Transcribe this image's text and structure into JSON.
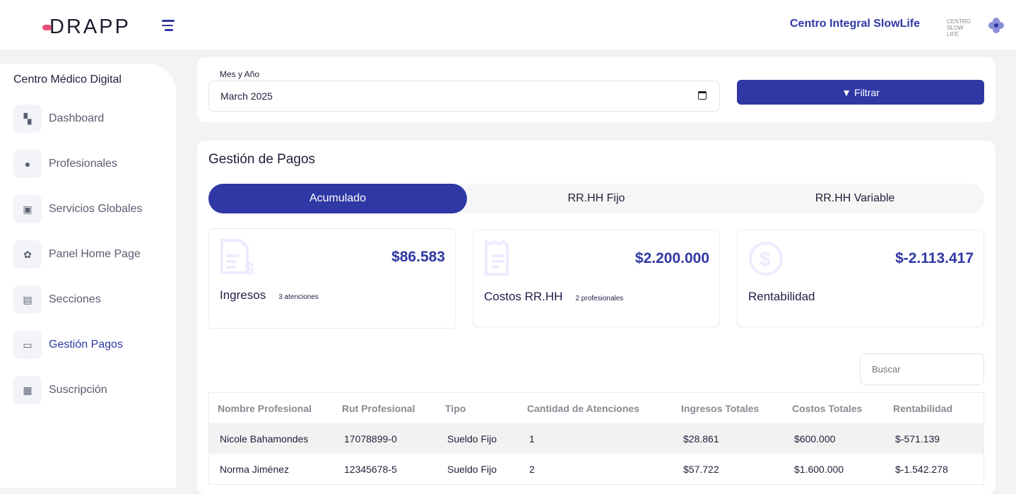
{
  "header": {
    "logo": "DRAPP",
    "center_name": "Centro Integral SlowLife",
    "center_logo_text": "CENTRO SLOW LIFE"
  },
  "sidebar": {
    "title": "Centro Médico Digital",
    "items": [
      {
        "label": "Dashboard",
        "icon": "dashboard-icon"
      },
      {
        "label": "Profesionales",
        "icon": "professional-icon"
      },
      {
        "label": "Servicios Globales",
        "icon": "services-icon"
      },
      {
        "label": "Panel Home Page",
        "icon": "flower-icon"
      },
      {
        "label": "Secciones",
        "icon": "book-icon"
      },
      {
        "label": "Gestión Pagos",
        "icon": "payment-icon",
        "active": true
      },
      {
        "label": "Suscripción",
        "icon": "receipt-icon"
      }
    ]
  },
  "filter": {
    "label": "Mes y Año",
    "value": "March 2025",
    "button": "Filtrar"
  },
  "main": {
    "title": "Gestión de Pagos",
    "tabs": [
      {
        "label": "Acumulado",
        "active": true
      },
      {
        "label": "RR.HH Fijo"
      },
      {
        "label": "RR.HH Variable"
      }
    ],
    "stats": [
      {
        "value": "$86.583",
        "label": "Ingresos",
        "sub": "3 atenciones",
        "icon": "invoice-dollar-icon"
      },
      {
        "value": "$2.200.000",
        "label": "Costos RR.HH",
        "sub": "2 profesionales",
        "icon": "receipt-icon"
      },
      {
        "value": "$-2.113.417",
        "label": "Rentabilidad",
        "sub": "",
        "icon": "dollar-circle-icon"
      }
    ],
    "search_placeholder": "Buscar",
    "table": {
      "columns": [
        "Nombre Profesional",
        "Rut Profesional",
        "Tipo",
        "Cantidad de Atenciones",
        "Ingresos Totales",
        "Costos Totales",
        "Rentabilidad"
      ],
      "rows": [
        [
          "Nicole Bahamondes",
          "17078899-0",
          "Sueldo Fijo",
          "1",
          "$28.861",
          "$600.000",
          "$-571.139"
        ],
        [
          "Norma Jiménez",
          "12345678-5",
          "Sueldo Fijo",
          "2",
          "$57.722",
          "$1.600.000",
          "$-1.542.278"
        ]
      ]
    }
  },
  "colors": {
    "accent": "#2f38a5",
    "logo_pink": "#e8507a"
  }
}
